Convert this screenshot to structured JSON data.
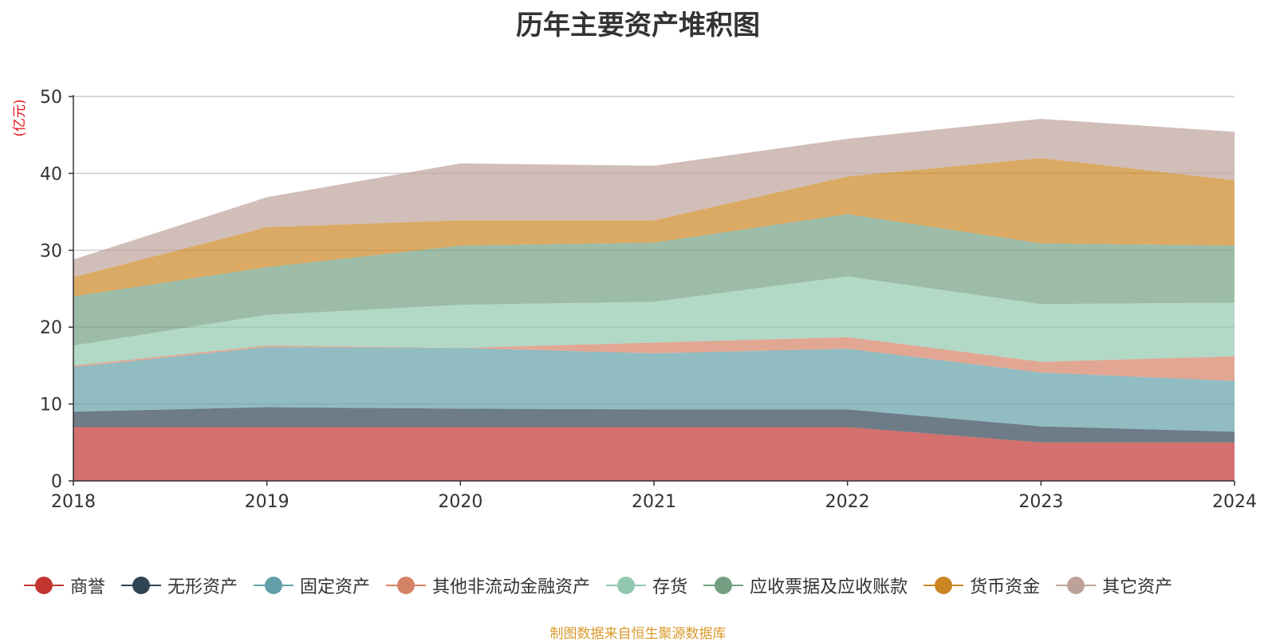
{
  "chart_data": {
    "type": "area",
    "stacked": true,
    "title": "历年主要资产堆积图",
    "ylabel": "(亿元)",
    "xlabel": "",
    "x": [
      "2018",
      "2019",
      "2020",
      "2021",
      "2022",
      "2023",
      "2024"
    ],
    "ylim": [
      0,
      50
    ],
    "yticks": [
      "0",
      "10",
      "20",
      "30",
      "40",
      "50"
    ],
    "grid": true,
    "legend_position": "bottom",
    "series": [
      {
        "name": "商誉",
        "color": "#c23531",
        "values": [
          7.0,
          7.0,
          7.0,
          7.0,
          7.0,
          5.0,
          5.0
        ]
      },
      {
        "name": "无形资产",
        "color": "#2f4554",
        "values": [
          2.0,
          2.6,
          2.4,
          2.3,
          2.3,
          2.1,
          1.4
        ]
      },
      {
        "name": "固定资产",
        "color": "#61a0a8",
        "values": [
          5.8,
          7.8,
          7.9,
          7.3,
          7.9,
          7.0,
          6.6
        ]
      },
      {
        "name": "其他非流动金融资产",
        "color": "#d48265",
        "values": [
          0.2,
          0.2,
          0.0,
          1.4,
          1.5,
          1.4,
          3.2
        ]
      },
      {
        "name": "存货",
        "color": "#91c7ae",
        "values": [
          2.6,
          4.0,
          5.6,
          5.3,
          7.9,
          7.5,
          7.0
        ]
      },
      {
        "name": "应收票据及应收账款",
        "color": "#749f83",
        "values": [
          6.4,
          6.2,
          7.7,
          7.7,
          8.1,
          7.9,
          7.4
        ]
      },
      {
        "name": "货币资金",
        "color": "#ca8622",
        "values": [
          2.5,
          5.2,
          3.3,
          2.9,
          4.9,
          11.1,
          8.5
        ]
      },
      {
        "name": "其它资产",
        "color": "#bda29a",
        "values": [
          2.3,
          3.9,
          7.4,
          7.1,
          4.9,
          5.1,
          6.3
        ]
      }
    ]
  },
  "source_note": "制图数据来自恒生聚源数据库"
}
